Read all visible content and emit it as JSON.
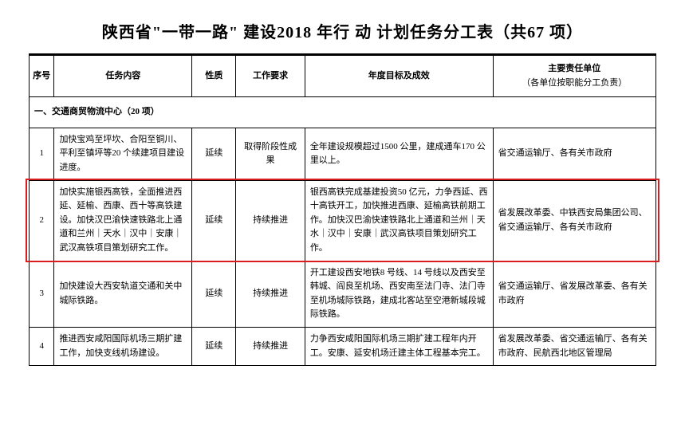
{
  "title": "陕西省\"一带一路\" 建设2018 年行 动 计划任务分工表（共67 项）",
  "columns": {
    "seq": "序号",
    "task": "任务内容",
    "nature": "性质",
    "req": "工作要求",
    "target": "年度目标及成效",
    "resp": "主要责任单位",
    "resp_sub": "（各单位按职能分工负责）"
  },
  "section": "一、交通商贸物流中心（20 项）",
  "rows": [
    {
      "seq": "1",
      "task": "加快宝鸡至坪坎、合阳至铜川、平利至镇坪等20 个续建项目建设进度。",
      "nature": "延续",
      "req": "取得阶段性成果",
      "target": "全年建设规模超过1500 公里，建成通车170 公里以上。",
      "resp": "省交通运输厅、各有关市政府"
    },
    {
      "seq": "2",
      "task": "加快实施银西高铁，全面推进西延、延榆、西康、西十等高铁建设。加快汉巴渝快速铁路北上通道和兰州｜天水｜汉中｜安康｜武汉高铁项目策划研究工作。",
      "nature": "延续",
      "req": "持续推进",
      "target": "银西高铁完成基建投资50 亿元，力争西延、西十高铁开工，加快推进西康、延榆高铁前期工作。加快汉巴渝快速铁路北上通道和兰州｜天水｜汉中｜安康｜武汉高铁项目策划研究工作。",
      "resp": "省发展改革委、中铁西安局集团公司、省交通运输厅、各有关市政府"
    },
    {
      "seq": "3",
      "task": "加快建设大西安轨道交通和关中城际铁路。",
      "nature": "延续",
      "req": "持续推进",
      "target": "开工建设西安地铁8 号线、14 号线以及西安至韩城、阎良至机场、西安南至法门寺、法门寺至机场城际铁路，建成北客站至空港新城段城际铁路。",
      "resp": "省交通运输厅、省发展改革委、各有关市政府"
    },
    {
      "seq": "4",
      "task": "推进西安咸阳国际机场三期扩建工作，加快支线机场建设。",
      "nature": "延续",
      "req": "持续推进",
      "target": "力争西安咸阳国际机场三期扩建工程年内开工。安康、延安机场迁建主体工程基本完工。",
      "resp": "省发展改革委、省交通运输厅、各有关市政府、民航西北地区管理局"
    }
  ],
  "highlight": {
    "row_index": 1,
    "color": "#d81e1e"
  }
}
